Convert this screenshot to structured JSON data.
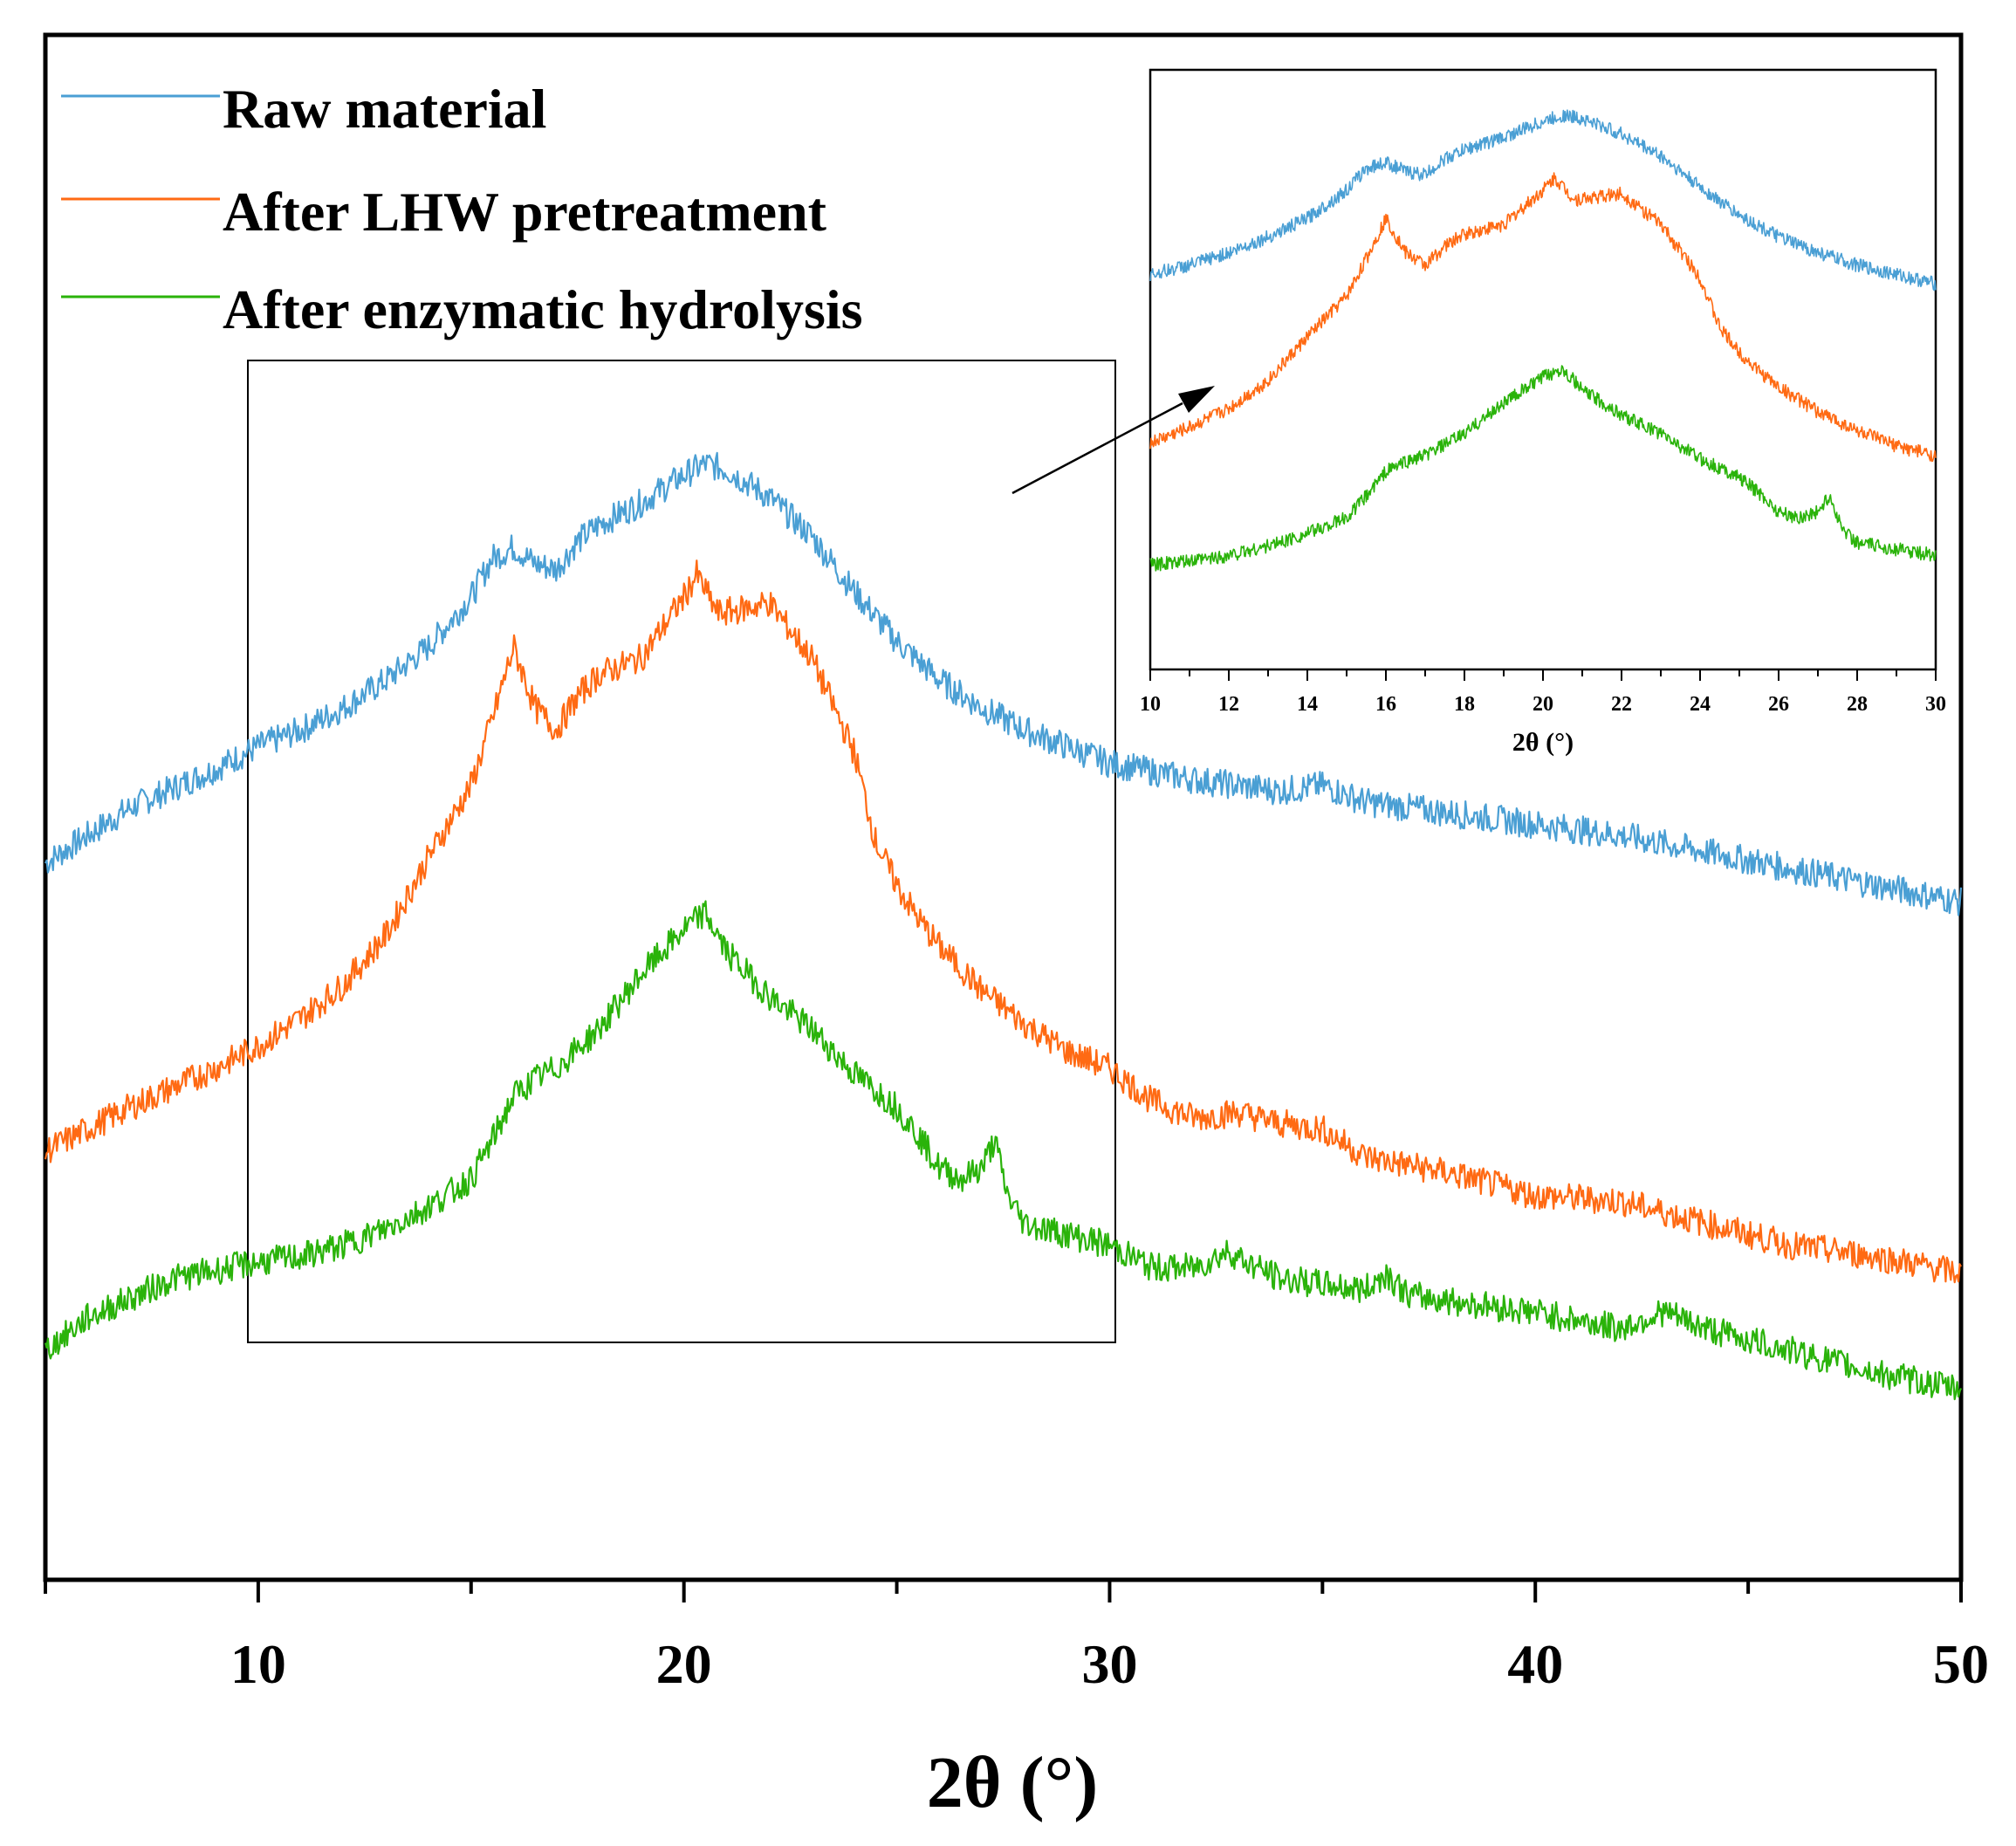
{
  "chart_data": [
    {
      "id": "main",
      "type": "line",
      "title": "",
      "xlabel": "2θ (°)",
      "ylabel": "",
      "xlim": [
        5,
        50
      ],
      "ylim": [
        0,
        100
      ],
      "x_ticks": [
        10,
        20,
        30,
        40,
        50
      ],
      "x_minor_ticks": [
        5,
        15,
        25,
        35,
        45
      ],
      "grid": false,
      "legend_position": "top-left",
      "zoom_region_x": [
        10,
        30
      ],
      "series": [
        {
          "name": "Raw material",
          "color": "#4a9fd4",
          "x": [
            5,
            7,
            9,
            10,
            11,
            12,
            13,
            14,
            15,
            15.5,
            16,
            16.5,
            17,
            17.5,
            18,
            19,
            20,
            20.5,
            21,
            22,
            23,
            24,
            25,
            26,
            27,
            28,
            29,
            30,
            32,
            34,
            35,
            36,
            38,
            40,
            42,
            44,
            46,
            48,
            50
          ],
          "values": [
            56,
            61,
            64.5,
            66.5,
            68,
            70,
            72.5,
            75.5,
            80,
            83.5,
            84.5,
            83,
            82.5,
            85,
            86.5,
            88.5,
            91,
            92,
            91.5,
            89,
            85.5,
            80.5,
            76,
            72.5,
            70,
            68,
            66.5,
            65,
            63.5,
            62.5,
            63,
            61.5,
            60.5,
            59.5,
            58.5,
            57,
            55.5,
            54,
            52.5
          ]
        },
        {
          "name": "After LHW pretreatment",
          "color": "#ff6a13",
          "x": [
            5,
            7,
            9,
            10,
            11,
            12,
            13,
            14,
            15,
            15.5,
            16,
            16.5,
            17,
            17.5,
            18,
            19,
            20,
            20.3,
            20.8,
            21.5,
            22,
            23,
            24,
            24.5,
            25,
            25.5,
            26,
            27,
            28,
            29,
            30,
            31,
            32,
            33,
            34,
            35,
            36,
            38,
            40,
            42,
            44,
            46,
            48,
            50
          ],
          "values": [
            30,
            34,
            37.5,
            39.5,
            42,
            45,
            49.5,
            56.5,
            63,
            69,
            75.5,
            70,
            68,
            71,
            73,
            74.5,
            80,
            82,
            78.5,
            79,
            79.5,
            74.5,
            66,
            58,
            54,
            51,
            48.5,
            44.5,
            41.5,
            39,
            37.5,
            34.5,
            33,
            33.5,
            32.5,
            32,
            29.5,
            28,
            26,
            25.5,
            23.5,
            21.5,
            20.5,
            19
          ]
        },
        {
          "name": "After enzymatic hydrolysis",
          "color": "#2ab30a",
          "x": [
            5,
            6,
            8,
            10,
            11,
            12,
            13,
            14,
            15,
            15.5,
            16,
            16.5,
            17,
            18,
            19,
            20,
            20.5,
            21,
            22,
            23,
            24,
            25,
            25.5,
            26,
            26.5,
            27,
            27.3,
            27.6,
            28,
            29,
            30,
            31,
            32,
            32.8,
            33.2,
            34,
            35,
            36,
            36.5,
            37,
            38,
            40,
            42,
            43,
            44,
            46,
            48,
            50
          ],
          "values": [
            12,
            15,
            18.5,
            20,
            20.5,
            21.5,
            23,
            25,
            27.5,
            31,
            35,
            36.5,
            37.5,
            41,
            46,
            50,
            51.5,
            48,
            44,
            41,
            37,
            34,
            31.5,
            28.5,
            27.5,
            28.5,
            31,
            26,
            23.5,
            22.5,
            21.5,
            19.5,
            19.5,
            21,
            20,
            18.5,
            18,
            17.5,
            19,
            17,
            16.5,
            15.5,
            14,
            15.5,
            14,
            12,
            10,
            8.5
          ]
        }
      ]
    },
    {
      "id": "inset",
      "type": "line",
      "title": "",
      "xlabel": "2θ (°)",
      "ylabel": "",
      "xlim": [
        10,
        30
      ],
      "ylim": [
        0,
        100
      ],
      "x_ticks": [
        10,
        12,
        14,
        16,
        18,
        20,
        22,
        24,
        26,
        28,
        30
      ],
      "grid": false,
      "series": [
        {
          "name": "Raw material",
          "color": "#4a9fd4",
          "x": [
            10,
            11,
            12,
            13,
            14,
            15,
            15.5,
            16,
            16.5,
            17,
            17.5,
            18,
            19,
            20,
            20.5,
            21,
            22,
            23,
            24,
            25,
            26,
            27,
            28,
            29,
            30
          ],
          "values": [
            66.5,
            68,
            70,
            72.5,
            75.5,
            80,
            83.5,
            84.5,
            83,
            82.5,
            85,
            86.5,
            88.5,
            91,
            92,
            91.5,
            89,
            85.5,
            80.5,
            76,
            72.5,
            70,
            68,
            66.5,
            65
          ]
        },
        {
          "name": "After LHW pretreatment",
          "color": "#ff6a13",
          "x": [
            10,
            11,
            12,
            13,
            14,
            15,
            15.5,
            16,
            16.5,
            17,
            17.5,
            18,
            19,
            20,
            20.3,
            20.8,
            21.5,
            22,
            23,
            24,
            24.5,
            25,
            25.5,
            26,
            27,
            28,
            29,
            30
          ],
          "values": [
            39.5,
            42,
            45,
            49.5,
            56.5,
            63,
            69,
            75.5,
            70,
            68,
            71,
            73,
            74.5,
            80,
            82,
            78.5,
            79,
            79.5,
            74.5,
            66,
            58,
            54,
            51,
            48.5,
            44.5,
            41.5,
            39,
            37.5
          ]
        },
        {
          "name": "After enzymatic hydrolysis",
          "color": "#2ab30a",
          "x": [
            10,
            11,
            12,
            13,
            14,
            15,
            15.5,
            16,
            16.5,
            17,
            18,
            19,
            20,
            20.5,
            21,
            22,
            23,
            24,
            25,
            25.5,
            26,
            26.5,
            27,
            27.3,
            27.6,
            28,
            29,
            30
          ],
          "values": [
            20,
            20.5,
            21.5,
            23,
            25,
            27.5,
            31,
            35,
            36.5,
            37.5,
            41,
            46,
            50,
            51.5,
            48,
            44,
            41,
            37,
            34,
            31.5,
            28.5,
            27.5,
            28.5,
            31,
            26,
            23.5,
            22.5,
            21.5
          ]
        }
      ]
    }
  ]
}
